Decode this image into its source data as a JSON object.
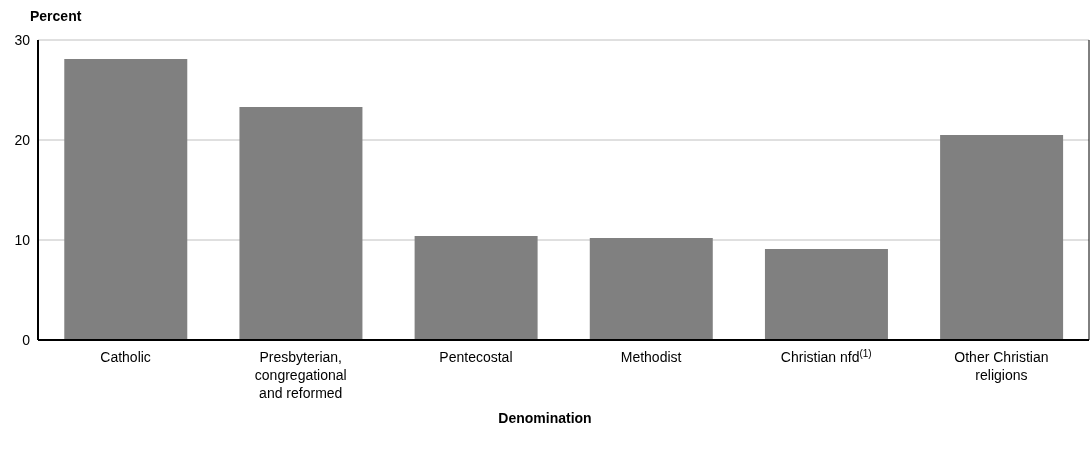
{
  "chart_data": {
    "type": "bar",
    "xlabel": "Denomination",
    "ylabel": "Percent",
    "categories": [
      "Catholic",
      "Presbyterian, congregational and reformed",
      "Pentecostal",
      "Methodist",
      "Christian nfd$^{(1)}$",
      "Other Christian religions"
    ],
    "values": [
      28.1,
      23.3,
      10.4,
      10.2,
      9.1,
      20.5
    ],
    "color": "#808080",
    "ylim": [
      0,
      30
    ],
    "yticks": [
      0,
      10,
      20,
      30
    ],
    "grid": "y"
  }
}
